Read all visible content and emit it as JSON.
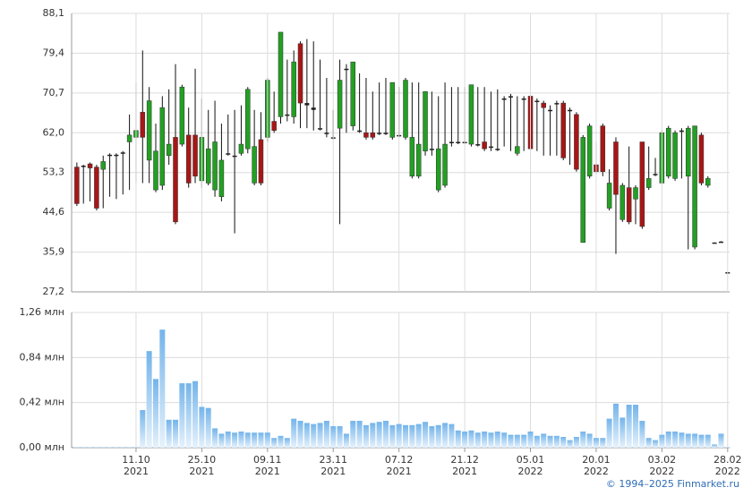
{
  "chart_data": [
    {
      "type": "candlestick",
      "up_color": "#22a022",
      "down_color": "#a81616",
      "flat_color": "#222222",
      "xlim": [
        -0.8,
        99.3
      ],
      "ylim": [
        27.2,
        88.1
      ],
      "yticks": [
        {
          "value": 27.2,
          "label": "27,2"
        },
        {
          "value": 35.9,
          "label": "35,9"
        },
        {
          "value": 44.6,
          "label": "44,6"
        },
        {
          "value": 53.3,
          "label": "53,3"
        },
        {
          "value": 62.0,
          "label": "62,0"
        },
        {
          "value": 70.7,
          "label": "70,7"
        },
        {
          "value": 79.4,
          "label": "79,4"
        },
        {
          "value": 88.1,
          "label": "88,1"
        }
      ],
      "grid": true,
      "open": [
        54.5,
        54.8,
        55.2,
        54.5,
        54,
        57,
        57,
        57.5,
        60,
        61,
        66.5,
        56,
        49.5,
        50.5,
        57,
        61,
        59.5,
        61.5,
        61.5,
        51.5,
        51,
        49.5,
        48,
        57.5,
        57,
        57.5,
        58.5,
        51,
        60.5,
        61,
        64.5,
        65.5,
        66,
        65.5,
        81.5,
        68.5,
        67.5,
        63,
        62,
        61,
        63,
        76,
        63.5,
        62.5,
        62,
        62,
        62,
        62,
        61,
        61.5,
        61,
        52.5,
        52.5,
        58,
        58.5,
        49.5,
        50.5,
        60,
        60,
        60,
        59.5,
        59.5,
        60,
        59,
        58.5,
        69.5,
        70,
        57.5,
        69.5,
        70,
        69,
        68.5,
        67,
        68.5,
        68.5,
        67,
        66,
        38,
        52.5,
        55,
        63.5,
        45.5,
        60,
        43,
        50,
        47.5,
        60,
        50,
        53,
        51,
        52.5,
        52,
        62.5,
        52.5,
        37,
        61.5,
        50.5,
        38,
        38,
        31.5
      ],
      "high": [
        55.5,
        55,
        55.5,
        55,
        57,
        57.5,
        57.5,
        58,
        66,
        73,
        80,
        72,
        64,
        70,
        71.5,
        77,
        72.5,
        67.5,
        76,
        69.5,
        67,
        69,
        64,
        66,
        67,
        68,
        72,
        67,
        66.5,
        74,
        71,
        84,
        78,
        80,
        82,
        82.5,
        82,
        78,
        74,
        67,
        78,
        77,
        77.5,
        75,
        74,
        71,
        73,
        74,
        73,
        72,
        74,
        73,
        73,
        71,
        71,
        70,
        73,
        72,
        72,
        72,
        72.5,
        72,
        72,
        71,
        71.5,
        70,
        70.5,
        70,
        70,
        70.5,
        69.5,
        69,
        68,
        69,
        69,
        67.5,
        66.5,
        61.5,
        64,
        60,
        64,
        54,
        61,
        51,
        59,
        50.5,
        60,
        59,
        56.5,
        62.5,
        63.5,
        62.5,
        63,
        63.5,
        63.5,
        62,
        52.5,
        38,
        38.3,
        31.5
      ],
      "low": [
        46,
        46.5,
        47,
        45,
        45.5,
        48,
        47.5,
        48.5,
        49.5,
        51,
        51,
        51,
        49,
        49.5,
        55,
        42,
        59,
        50,
        51,
        50,
        50.5,
        48,
        47,
        57,
        40,
        57,
        57.5,
        50.5,
        50.5,
        60,
        62,
        64,
        64.5,
        64,
        63,
        63,
        62.5,
        62.5,
        61,
        60.5,
        42,
        62,
        62.5,
        62,
        60.5,
        60.5,
        61.5,
        61.5,
        60.5,
        61,
        60.5,
        52,
        52,
        57,
        57,
        49,
        50,
        59,
        59.5,
        59.5,
        59,
        59,
        58,
        58,
        58,
        59,
        58,
        57,
        58,
        58,
        58,
        57,
        57,
        57,
        56,
        55,
        53.5,
        38,
        52,
        53,
        52.5,
        45,
        35.5,
        42.5,
        42,
        42,
        41,
        49.5,
        52.5,
        51,
        52,
        51.5,
        52,
        36.5,
        36.5,
        50.5,
        50,
        37.8,
        38,
        31.3
      ],
      "close": [
        46.5,
        54.6,
        54.3,
        45.5,
        55.7,
        57.2,
        57.2,
        57.7,
        61.5,
        62.5,
        61,
        69,
        58,
        67.5,
        59.5,
        42.5,
        72,
        51,
        52.5,
        61,
        58.5,
        60,
        56,
        57.3,
        56.8,
        59.5,
        71.5,
        59,
        51,
        73.5,
        62.5,
        84,
        65.8,
        77.5,
        68.5,
        68,
        67,
        62.8,
        61.8,
        60.8,
        73.5,
        75.8,
        77.5,
        62.3,
        61,
        61,
        61.8,
        61.8,
        73,
        61.3,
        73.5,
        61,
        59.5,
        71,
        58.3,
        58.5,
        59.5,
        59.8,
        59.8,
        59.8,
        72.5,
        59.3,
        58.5,
        58.8,
        58.3,
        69.3,
        69.8,
        59,
        69.3,
        58.5,
        68.8,
        67.5,
        66.8,
        68.3,
        56.5,
        66.8,
        54,
        61,
        63.5,
        53.5,
        53.5,
        51,
        48.5,
        50.5,
        42.5,
        50,
        41.5,
        52,
        52.8,
        62,
        63,
        62,
        62.3,
        63,
        63.5,
        51,
        52,
        37.8,
        38.2,
        31.3
      ]
    },
    {
      "type": "bar",
      "color": "#74b4ea",
      "xlim": [
        -0.8,
        99.3
      ],
      "ylim": [
        0,
        1.26
      ],
      "yticks": [
        {
          "value": 0,
          "label": "0,00 млн"
        },
        {
          "value": 0.42,
          "label": "0,42 млн"
        },
        {
          "value": 0.84,
          "label": "0,84 млн"
        },
        {
          "value": 1.26,
          "label": "1,26 млн"
        }
      ],
      "xticks": [
        {
          "value": 9,
          "label": "11.10",
          "year": "2021"
        },
        {
          "value": 19,
          "label": "25.10",
          "year": "2021"
        },
        {
          "value": 29,
          "label": "09.11",
          "year": "2021"
        },
        {
          "value": 39,
          "label": "23.11",
          "year": "2021"
        },
        {
          "value": 49,
          "label": "07.12",
          "year": "2021"
        },
        {
          "value": 59,
          "label": "21.12",
          "year": "2021"
        },
        {
          "value": 69,
          "label": "05.01",
          "year": "2022"
        },
        {
          "value": 79,
          "label": "20.01",
          "year": "2022"
        },
        {
          "value": 89,
          "label": "03.02",
          "year": "2022"
        },
        {
          "value": 99,
          "label": "28.02",
          "year": "2022"
        }
      ],
      "grid": true,
      "values": [
        0.005,
        0.005,
        0.005,
        0.005,
        0.005,
        0.005,
        0.005,
        0.005,
        0.005,
        0.005,
        0.35,
        0.9,
        0.64,
        1.1,
        0.26,
        0.26,
        0.6,
        0.6,
        0.62,
        0.38,
        0.37,
        0.18,
        0.13,
        0.15,
        0.14,
        0.15,
        0.14,
        0.14,
        0.14,
        0.14,
        0.09,
        0.11,
        0.09,
        0.27,
        0.25,
        0.23,
        0.22,
        0.23,
        0.25,
        0.2,
        0.2,
        0.13,
        0.25,
        0.25,
        0.21,
        0.23,
        0.24,
        0.25,
        0.21,
        0.22,
        0.21,
        0.21,
        0.22,
        0.24,
        0.2,
        0.21,
        0.23,
        0.22,
        0.16,
        0.15,
        0.16,
        0.14,
        0.15,
        0.14,
        0.15,
        0.14,
        0.12,
        0.12,
        0.12,
        0.15,
        0.11,
        0.13,
        0.11,
        0.11,
        0.1,
        0.07,
        0.1,
        0.15,
        0.13,
        0.09,
        0.09,
        0.27,
        0.41,
        0.28,
        0.4,
        0.4,
        0.25,
        0.09,
        0.07,
        0.12,
        0.15,
        0.15,
        0.14,
        0.13,
        0.13,
        0.12,
        0.12,
        0.03,
        0.13,
        0.005
      ]
    }
  ],
  "copyright": "© 1994–2025 Finmarket.ru"
}
